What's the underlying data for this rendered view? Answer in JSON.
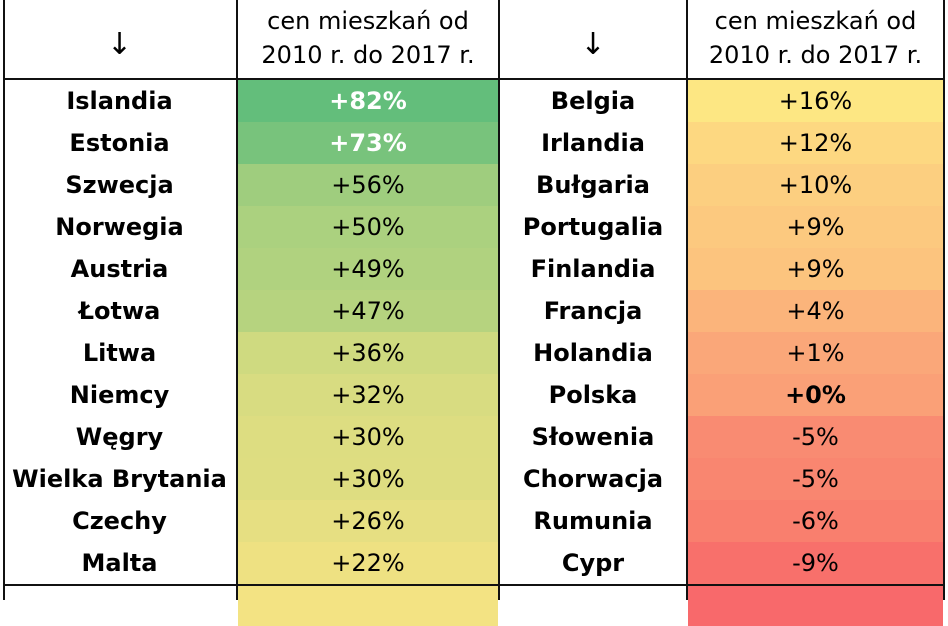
{
  "header": {
    "left_country_arrow": "↓",
    "left_value_lines": [
      "cen mieszkań od",
      "2010 r. do 2017 r."
    ],
    "right_country_arrow": "↓",
    "right_value_lines": [
      "cen mieszkań od",
      "2010 r. do 2017 r."
    ]
  },
  "chart_data": {
    "type": "table",
    "value_unit": "%",
    "left_rows": [
      {
        "country": "Islandia",
        "value": "+82%",
        "numeric": 82,
        "color": "#63be7b",
        "bold": true,
        "white": true
      },
      {
        "country": "Estonia",
        "value": "+73%",
        "numeric": 73,
        "color": "#78c37c",
        "bold": true,
        "white": true
      },
      {
        "country": "Szwecja",
        "value": "+56%",
        "numeric": 56,
        "color": "#9fcd7e",
        "bold": false,
        "white": false
      },
      {
        "country": "Norwegia",
        "value": "+50%",
        "numeric": 50,
        "color": "#abd17f",
        "bold": false,
        "white": false
      },
      {
        "country": "Austria",
        "value": "+49%",
        "numeric": 49,
        "color": "#b0d27f",
        "bold": false,
        "white": false
      },
      {
        "country": "Łotwa",
        "value": "+47%",
        "numeric": 47,
        "color": "#b6d37f",
        "bold": false,
        "white": false
      },
      {
        "country": "Litwa",
        "value": "+36%",
        "numeric": 36,
        "color": "#cfda80",
        "bold": false,
        "white": false
      },
      {
        "country": "Niemcy",
        "value": "+32%",
        "numeric": 32,
        "color": "#d8dc81",
        "bold": false,
        "white": false
      },
      {
        "country": "Węgry",
        "value": "+30%",
        "numeric": 30,
        "color": "#dddd81",
        "bold": false,
        "white": false
      },
      {
        "country": "Wielka Brytania",
        "value": "+30%",
        "numeric": 30,
        "color": "#dedd81",
        "bold": false,
        "white": false
      },
      {
        "country": "Czechy",
        "value": "+26%",
        "numeric": 26,
        "color": "#e6df82",
        "bold": false,
        "white": false
      },
      {
        "country": "Malta",
        "value": "+22%",
        "numeric": 22,
        "color": "#eee182",
        "bold": false,
        "white": false
      }
    ],
    "right_rows": [
      {
        "country": "Belgia",
        "value": "+16%",
        "numeric": 16,
        "color": "#fde783",
        "bold": false,
        "white": false
      },
      {
        "country": "Irlandia",
        "value": "+12%",
        "numeric": 12,
        "color": "#fdd881",
        "bold": false,
        "white": false
      },
      {
        "country": "Bułgaria",
        "value": "+10%",
        "numeric": 10,
        "color": "#fccf80",
        "bold": false,
        "white": false
      },
      {
        "country": "Portugalia",
        "value": "+9%",
        "numeric": 9,
        "color": "#fcc97f",
        "bold": false,
        "white": false
      },
      {
        "country": "Finlandia",
        "value": "+9%",
        "numeric": 9,
        "color": "#fcc47e",
        "bold": false,
        "white": false
      },
      {
        "country": "Francja",
        "value": "+4%",
        "numeric": 4,
        "color": "#fbb47b",
        "bold": false,
        "white": false
      },
      {
        "country": "Holandia",
        "value": "+1%",
        "numeric": 1,
        "color": "#faa779",
        "bold": false,
        "white": false
      },
      {
        "country": "Polska",
        "value": "+0%",
        "numeric": 0,
        "color": "#faa077",
        "bold": true,
        "white": false
      },
      {
        "country": "Słowenia",
        "value": "-5%",
        "numeric": -5,
        "color": "#f98b72",
        "bold": false,
        "white": false
      },
      {
        "country": "Chorwacja",
        "value": "-5%",
        "numeric": -5,
        "color": "#f98670",
        "bold": false,
        "white": false
      },
      {
        "country": "Rumunia",
        "value": "-6%",
        "numeric": -6,
        "color": "#f97f6e",
        "bold": false,
        "white": false
      },
      {
        "country": "Cypr",
        "value": "-9%",
        "numeric": -9,
        "color": "#f8706b",
        "bold": false,
        "white": false
      }
    ],
    "partial_row_colors": {
      "left": "#f3e383",
      "right": "#f8696b"
    }
  }
}
